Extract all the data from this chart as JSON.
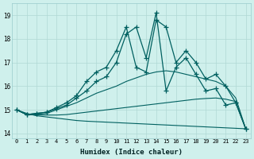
{
  "xlabel": "Humidex (Indice chaleur)",
  "xlim": [
    -0.5,
    23.5
  ],
  "ylim": [
    13.8,
    19.5
  ],
  "xticks": [
    0,
    1,
    2,
    3,
    4,
    5,
    6,
    7,
    8,
    9,
    10,
    11,
    12,
    13,
    14,
    15,
    16,
    17,
    18,
    19,
    20,
    21,
    22,
    23
  ],
  "yticks": [
    14,
    15,
    16,
    17,
    18,
    19
  ],
  "bg_color": "#cff0ec",
  "grid_color": "#b0d8d4",
  "line_color": "#006060",
  "series_marked1": [
    15.0,
    14.8,
    14.85,
    14.9,
    15.1,
    15.3,
    15.6,
    16.2,
    16.6,
    16.8,
    17.5,
    18.5,
    16.8,
    16.6,
    18.8,
    18.5,
    17.0,
    17.5,
    17.0,
    16.3,
    16.5,
    16.0,
    15.3,
    14.2
  ],
  "series_marked2": [
    15.0,
    14.8,
    14.85,
    14.9,
    15.05,
    15.2,
    15.5,
    15.8,
    16.2,
    16.4,
    17.0,
    18.2,
    18.5,
    17.2,
    19.1,
    15.8,
    16.8,
    17.2,
    16.5,
    15.8,
    15.9,
    15.2,
    15.3,
    14.2
  ],
  "series_smooth1": [
    15.0,
    14.8,
    14.8,
    14.85,
    15.0,
    15.15,
    15.3,
    15.5,
    15.7,
    15.85,
    16.0,
    16.2,
    16.35,
    16.5,
    16.6,
    16.65,
    16.6,
    16.5,
    16.4,
    16.3,
    16.2,
    16.0,
    15.5,
    14.2
  ],
  "series_smooth2": [
    15.0,
    14.85,
    14.75,
    14.7,
    14.65,
    14.6,
    14.55,
    14.52,
    14.5,
    14.48,
    14.46,
    14.44,
    14.42,
    14.4,
    14.38,
    14.36,
    14.34,
    14.32,
    14.3,
    14.28,
    14.26,
    14.24,
    14.22,
    14.2
  ],
  "series_smooth3": [
    15.0,
    14.8,
    14.78,
    14.78,
    14.78,
    14.8,
    14.85,
    14.9,
    14.95,
    15.0,
    15.05,
    15.1,
    15.15,
    15.2,
    15.25,
    15.3,
    15.35,
    15.4,
    15.45,
    15.48,
    15.5,
    15.45,
    15.35,
    14.2
  ]
}
